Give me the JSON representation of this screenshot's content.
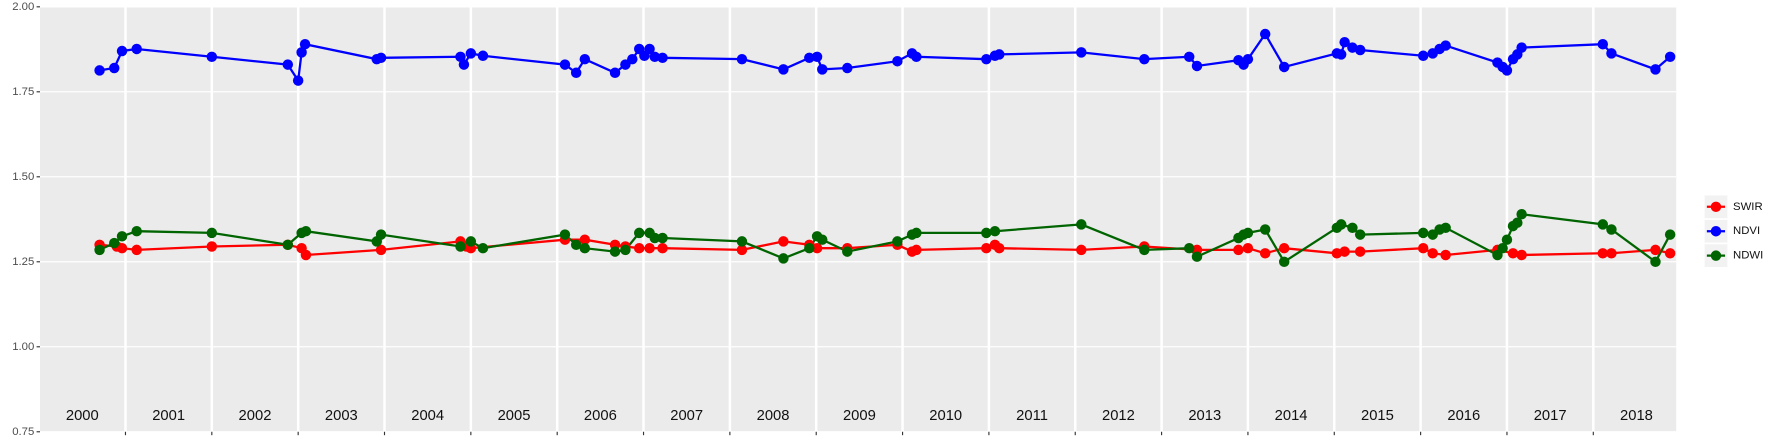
{
  "chart_data": {
    "type": "line",
    "xlim": [
      2000.01,
      2018.96
    ],
    "xticks": [
      2001,
      2002,
      2003,
      2004,
      2005,
      2006,
      2007,
      2008,
      2009,
      2010,
      2011,
      2012,
      2013,
      2014,
      2015,
      2016,
      2017,
      2018
    ],
    "year_labels": [
      {
        "value": 2000.5,
        "label": "2000"
      },
      {
        "value": 2001.5,
        "label": "2001"
      },
      {
        "value": 2002.5,
        "label": "2002"
      },
      {
        "value": 2003.5,
        "label": "2003"
      },
      {
        "value": 2004.5,
        "label": "2004"
      },
      {
        "value": 2005.5,
        "label": "2005"
      },
      {
        "value": 2006.5,
        "label": "2006"
      },
      {
        "value": 2007.5,
        "label": "2007"
      },
      {
        "value": 2008.5,
        "label": "2008"
      },
      {
        "value": 2009.5,
        "label": "2009"
      },
      {
        "value": 2010.5,
        "label": "2010"
      },
      {
        "value": 2011.5,
        "label": "2011"
      },
      {
        "value": 2012.5,
        "label": "2012"
      },
      {
        "value": 2013.5,
        "label": "2013"
      },
      {
        "value": 2014.5,
        "label": "2014"
      },
      {
        "value": 2015.5,
        "label": "2015"
      },
      {
        "value": 2016.5,
        "label": "2016"
      },
      {
        "value": 2017.5,
        "label": "2017"
      },
      {
        "value": 2018.5,
        "label": "2018"
      }
    ],
    "ylim": [
      0.75,
      2.0
    ],
    "yticks": [
      {
        "value": 0.75,
        "label": "0.75"
      },
      {
        "value": 1,
        "label": "1.00"
      },
      {
        "value": 1.25,
        "label": "1.25"
      },
      {
        "value": 1.5,
        "label": "1.50"
      },
      {
        "value": 1.75,
        "label": "1.75"
      },
      {
        "value": 2,
        "label": "2.00"
      }
    ],
    "grid": true,
    "legend": "right",
    "series": [
      {
        "name": "SWIR",
        "color": "#ff0000",
        "x": [
          2000.7,
          2000.9,
          2000.96,
          2001.13,
          2002.0,
          2002.88,
          2003.04,
          2003.09,
          2003.96,
          2004.88,
          2004.95,
          2005.0,
          2006.09,
          2006.32,
          2006.67,
          2006.79,
          2006.95,
          2007.07,
          2007.22,
          2008.14,
          2008.62,
          2008.92,
          2009.01,
          2009.36,
          2009.94,
          2010.11,
          2010.16,
          2010.97,
          2011.07,
          2011.12,
          2012.07,
          2012.8,
          2013.41,
          2013.89,
          2014.0,
          2014.2,
          2014.42,
          2015.03,
          2015.12,
          2015.3,
          2016.03,
          2016.14,
          2016.29,
          2016.89,
          2017.07,
          2017.17,
          2018.11,
          2018.21,
          2018.72,
          2018.89
        ],
        "values": [
          1.3,
          1.295,
          1.29,
          1.285,
          1.295,
          1.3,
          1.29,
          1.27,
          1.285,
          1.31,
          1.295,
          1.29,
          1.315,
          1.315,
          1.3,
          1.295,
          1.29,
          1.29,
          1.29,
          1.285,
          1.31,
          1.3,
          1.29,
          1.29,
          1.3,
          1.28,
          1.285,
          1.29,
          1.3,
          1.29,
          1.285,
          1.295,
          1.285,
          1.285,
          1.29,
          1.275,
          1.29,
          1.275,
          1.28,
          1.28,
          1.29,
          1.275,
          1.27,
          1.285,
          1.275,
          1.27,
          1.275,
          1.275,
          1.285,
          1.275
        ]
      },
      {
        "name": "NDVI",
        "color": "#0000ff",
        "x": [
          2000.7,
          2000.87,
          2000.96,
          2001.13,
          2002.0,
          2002.88,
          2003.0,
          2003.04,
          2003.08,
          2003.91,
          2003.96,
          2004.88,
          2004.92,
          2005.0,
          2005.14,
          2006.09,
          2006.22,
          2006.32,
          2006.67,
          2006.79,
          2006.87,
          2006.95,
          2007.01,
          2007.07,
          2007.13,
          2007.22,
          2008.14,
          2008.62,
          2008.92,
          2009.01,
          2009.07,
          2009.36,
          2009.94,
          2010.11,
          2010.16,
          2010.97,
          2011.07,
          2011.12,
          2012.07,
          2012.8,
          2013.32,
          2013.41,
          2013.89,
          2013.95,
          2014.0,
          2014.2,
          2014.42,
          2015.03,
          2015.08,
          2015.12,
          2015.21,
          2015.3,
          2016.03,
          2016.14,
          2016.22,
          2016.29,
          2016.89,
          2016.95,
          2017.0,
          2017.07,
          2017.12,
          2017.17,
          2018.11,
          2018.21,
          2018.72,
          2018.89
        ],
        "values": [
          1.813,
          1.82,
          1.87,
          1.876,
          1.853,
          1.83,
          1.783,
          1.866,
          1.89,
          1.846,
          1.85,
          1.853,
          1.83,
          1.863,
          1.856,
          1.83,
          1.806,
          1.846,
          1.806,
          1.83,
          1.846,
          1.876,
          1.856,
          1.876,
          1.853,
          1.85,
          1.846,
          1.816,
          1.85,
          1.853,
          1.816,
          1.82,
          1.84,
          1.863,
          1.853,
          1.846,
          1.856,
          1.86,
          1.866,
          1.846,
          1.853,
          1.826,
          1.843,
          1.83,
          1.846,
          1.92,
          1.823,
          1.863,
          1.86,
          1.896,
          1.88,
          1.873,
          1.856,
          1.863,
          1.876,
          1.886,
          1.836,
          1.823,
          1.813,
          1.846,
          1.86,
          1.88,
          1.89,
          1.863,
          1.816,
          1.853
        ]
      },
      {
        "name": "NDWI",
        "color": "#006400",
        "x": [
          2000.7,
          2000.87,
          2000.96,
          2001.13,
          2002.0,
          2002.88,
          2003.04,
          2003.09,
          2003.91,
          2003.96,
          2004.88,
          2005.0,
          2005.14,
          2006.09,
          2006.22,
          2006.32,
          2006.67,
          2006.79,
          2006.95,
          2007.07,
          2007.13,
          2007.22,
          2008.14,
          2008.62,
          2008.92,
          2009.01,
          2009.07,
          2009.36,
          2009.94,
          2010.11,
          2010.16,
          2010.97,
          2011.07,
          2012.07,
          2012.8,
          2013.32,
          2013.41,
          2013.89,
          2013.95,
          2014.0,
          2014.2,
          2014.42,
          2015.03,
          2015.08,
          2015.21,
          2015.3,
          2016.03,
          2016.14,
          2016.22,
          2016.29,
          2016.89,
          2016.95,
          2017.0,
          2017.07,
          2017.12,
          2017.17,
          2018.11,
          2018.21,
          2018.72,
          2018.89
        ],
        "values": [
          1.285,
          1.305,
          1.325,
          1.34,
          1.335,
          1.3,
          1.335,
          1.34,
          1.31,
          1.33,
          1.295,
          1.31,
          1.29,
          1.33,
          1.3,
          1.29,
          1.28,
          1.285,
          1.335,
          1.335,
          1.32,
          1.32,
          1.31,
          1.26,
          1.29,
          1.325,
          1.315,
          1.28,
          1.31,
          1.33,
          1.335,
          1.335,
          1.34,
          1.36,
          1.285,
          1.29,
          1.265,
          1.32,
          1.33,
          1.335,
          1.345,
          1.25,
          1.35,
          1.36,
          1.35,
          1.33,
          1.335,
          1.33,
          1.345,
          1.35,
          1.27,
          1.29,
          1.315,
          1.355,
          1.365,
          1.39,
          1.36,
          1.345,
          1.25,
          1.33
        ]
      }
    ]
  }
}
